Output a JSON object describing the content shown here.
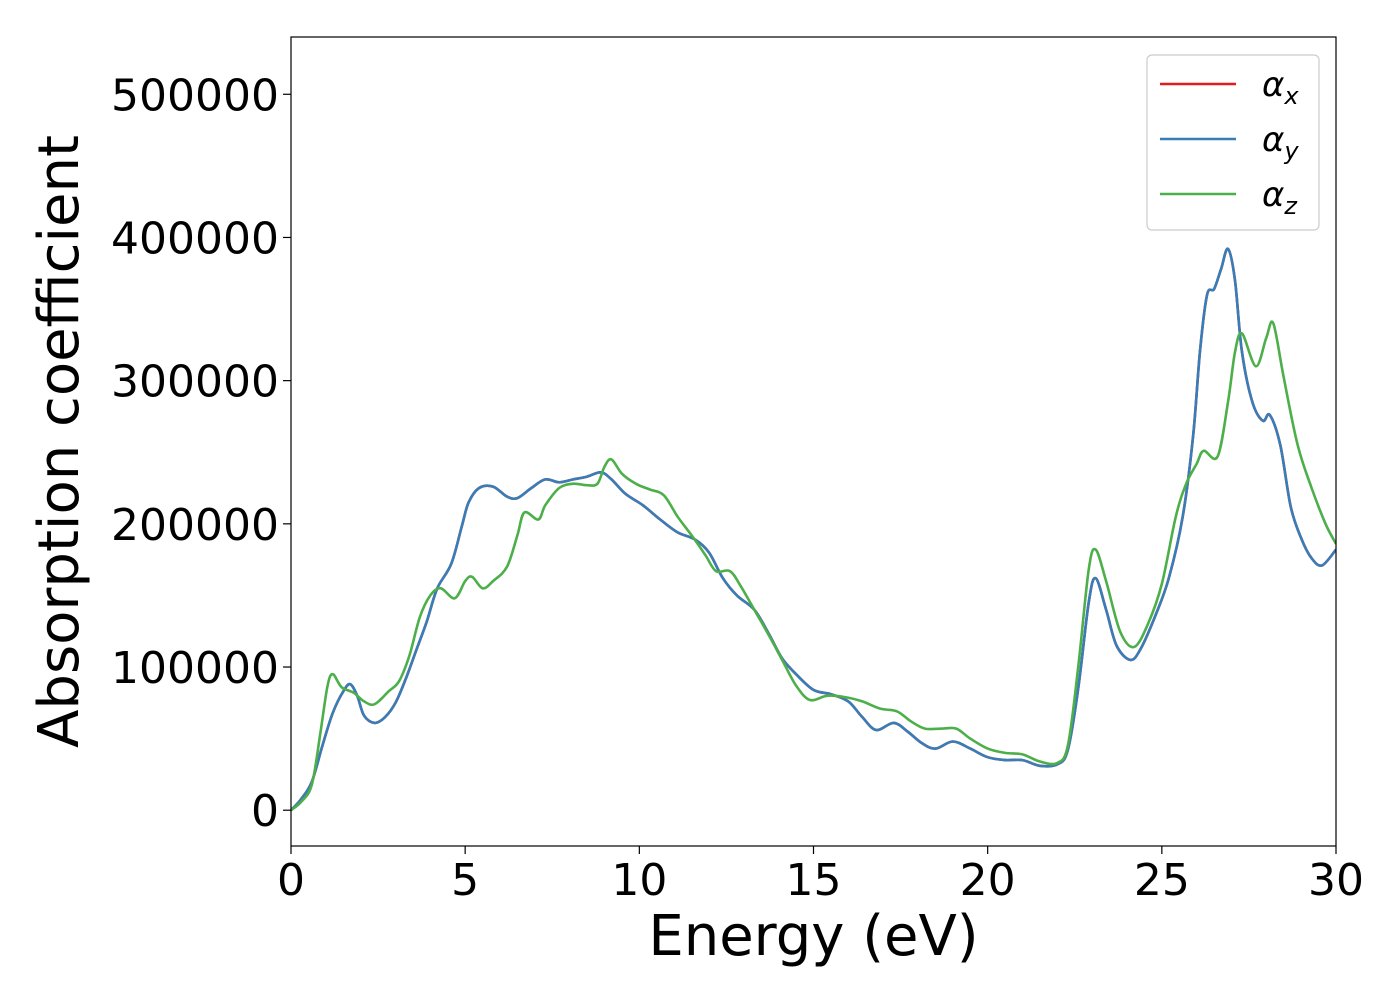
{
  "chart_data": {
    "type": "line",
    "xlabel": "Energy (eV)",
    "ylabel": "Absorption coefficient",
    "xlim": [
      0,
      30
    ],
    "ylim": [
      -25000,
      540000
    ],
    "x_ticks": [
      0,
      5,
      10,
      15,
      20,
      25,
      30
    ],
    "x_tick_labels": [
      "0",
      "5",
      "10",
      "15",
      "20",
      "25",
      "30"
    ],
    "y_ticks": [
      0,
      100000,
      200000,
      300000,
      400000,
      500000
    ],
    "y_tick_labels": [
      "0",
      "100000",
      "200000",
      "300000",
      "400000",
      "500000"
    ],
    "grid": false,
    "legend_position": "top-right",
    "series": [
      {
        "name": "αx",
        "symbol": "α",
        "subscript": "x",
        "color": "#e41a1c",
        "points": [
          [
            0,
            0
          ],
          [
            0.3,
            8000
          ],
          [
            0.6,
            20000
          ],
          [
            0.9,
            45000
          ],
          [
            1.2,
            68000
          ],
          [
            1.5,
            83000
          ],
          [
            1.7,
            88000
          ],
          [
            1.9,
            80000
          ],
          [
            2.1,
            66000
          ],
          [
            2.4,
            61000
          ],
          [
            2.7,
            65000
          ],
          [
            3.0,
            75000
          ],
          [
            3.3,
            92000
          ],
          [
            3.6,
            112000
          ],
          [
            3.9,
            132000
          ],
          [
            4.2,
            155000
          ],
          [
            4.6,
            172000
          ],
          [
            4.9,
            198000
          ],
          [
            5.1,
            215000
          ],
          [
            5.4,
            225000
          ],
          [
            5.8,
            226000
          ],
          [
            6.2,
            219000
          ],
          [
            6.5,
            218000
          ],
          [
            6.9,
            225000
          ],
          [
            7.3,
            231000
          ],
          [
            7.7,
            229000
          ],
          [
            8.1,
            231000
          ],
          [
            8.5,
            233000
          ],
          [
            8.9,
            236000
          ],
          [
            9.2,
            231000
          ],
          [
            9.6,
            221000
          ],
          [
            10.1,
            213000
          ],
          [
            10.6,
            203000
          ],
          [
            11.1,
            194000
          ],
          [
            11.6,
            189000
          ],
          [
            12.0,
            180000
          ],
          [
            12.4,
            162000
          ],
          [
            12.8,
            150000
          ],
          [
            13.3,
            140000
          ],
          [
            13.7,
            124000
          ],
          [
            14.1,
            106000
          ],
          [
            14.5,
            95000
          ],
          [
            15.0,
            84000
          ],
          [
            15.5,
            81000
          ],
          [
            16.0,
            76000
          ],
          [
            16.4,
            65000
          ],
          [
            16.8,
            56000
          ],
          [
            17.3,
            61000
          ],
          [
            17.7,
            55000
          ],
          [
            18.1,
            47000
          ],
          [
            18.5,
            43000
          ],
          [
            19.0,
            48000
          ],
          [
            19.5,
            43000
          ],
          [
            20.0,
            37000
          ],
          [
            20.5,
            35000
          ],
          [
            21.0,
            35000
          ],
          [
            21.5,
            31000
          ],
          [
            22.0,
            32000
          ],
          [
            22.3,
            42000
          ],
          [
            22.6,
            85000
          ],
          [
            22.9,
            145000
          ],
          [
            23.1,
            162000
          ],
          [
            23.4,
            140000
          ],
          [
            23.7,
            115000
          ],
          [
            24.1,
            105000
          ],
          [
            24.4,
            113000
          ],
          [
            24.8,
            135000
          ],
          [
            25.2,
            162000
          ],
          [
            25.6,
            205000
          ],
          [
            25.9,
            262000
          ],
          [
            26.1,
            322000
          ],
          [
            26.3,
            360000
          ],
          [
            26.5,
            364000
          ],
          [
            26.7,
            378000
          ],
          [
            26.9,
            392000
          ],
          [
            27.1,
            370000
          ],
          [
            27.3,
            320000
          ],
          [
            27.6,
            285000
          ],
          [
            27.9,
            272000
          ],
          [
            28.1,
            276000
          ],
          [
            28.4,
            255000
          ],
          [
            28.7,
            212000
          ],
          [
            29.0,
            190000
          ],
          [
            29.3,
            176000
          ],
          [
            29.6,
            171000
          ],
          [
            30.0,
            182000
          ]
        ]
      },
      {
        "name": "αy",
        "symbol": "α",
        "subscript": "y",
        "color": "#377eb8",
        "points": [
          [
            0,
            0
          ],
          [
            0.3,
            8000
          ],
          [
            0.6,
            20000
          ],
          [
            0.9,
            45000
          ],
          [
            1.2,
            68000
          ],
          [
            1.5,
            83000
          ],
          [
            1.7,
            88000
          ],
          [
            1.9,
            80000
          ],
          [
            2.1,
            66000
          ],
          [
            2.4,
            61000
          ],
          [
            2.7,
            65000
          ],
          [
            3.0,
            75000
          ],
          [
            3.3,
            92000
          ],
          [
            3.6,
            112000
          ],
          [
            3.9,
            132000
          ],
          [
            4.2,
            155000
          ],
          [
            4.6,
            172000
          ],
          [
            4.9,
            198000
          ],
          [
            5.1,
            215000
          ],
          [
            5.4,
            225000
          ],
          [
            5.8,
            226000
          ],
          [
            6.2,
            219000
          ],
          [
            6.5,
            218000
          ],
          [
            6.9,
            225000
          ],
          [
            7.3,
            231000
          ],
          [
            7.7,
            229000
          ],
          [
            8.1,
            231000
          ],
          [
            8.5,
            233000
          ],
          [
            8.9,
            236000
          ],
          [
            9.2,
            231000
          ],
          [
            9.6,
            221000
          ],
          [
            10.1,
            213000
          ],
          [
            10.6,
            203000
          ],
          [
            11.1,
            194000
          ],
          [
            11.6,
            189000
          ],
          [
            12.0,
            180000
          ],
          [
            12.4,
            162000
          ],
          [
            12.8,
            150000
          ],
          [
            13.3,
            140000
          ],
          [
            13.7,
            124000
          ],
          [
            14.1,
            106000
          ],
          [
            14.5,
            95000
          ],
          [
            15.0,
            84000
          ],
          [
            15.5,
            81000
          ],
          [
            16.0,
            76000
          ],
          [
            16.4,
            65000
          ],
          [
            16.8,
            56000
          ],
          [
            17.3,
            61000
          ],
          [
            17.7,
            55000
          ],
          [
            18.1,
            47000
          ],
          [
            18.5,
            43000
          ],
          [
            19.0,
            48000
          ],
          [
            19.5,
            43000
          ],
          [
            20.0,
            37000
          ],
          [
            20.5,
            35000
          ],
          [
            21.0,
            35000
          ],
          [
            21.5,
            31000
          ],
          [
            22.0,
            32000
          ],
          [
            22.3,
            42000
          ],
          [
            22.6,
            85000
          ],
          [
            22.9,
            145000
          ],
          [
            23.1,
            162000
          ],
          [
            23.4,
            140000
          ],
          [
            23.7,
            115000
          ],
          [
            24.1,
            105000
          ],
          [
            24.4,
            113000
          ],
          [
            24.8,
            135000
          ],
          [
            25.2,
            162000
          ],
          [
            25.6,
            205000
          ],
          [
            25.9,
            262000
          ],
          [
            26.1,
            322000
          ],
          [
            26.3,
            360000
          ],
          [
            26.5,
            364000
          ],
          [
            26.7,
            378000
          ],
          [
            26.9,
            392000
          ],
          [
            27.1,
            370000
          ],
          [
            27.3,
            320000
          ],
          [
            27.6,
            285000
          ],
          [
            27.9,
            272000
          ],
          [
            28.1,
            276000
          ],
          [
            28.4,
            255000
          ],
          [
            28.7,
            212000
          ],
          [
            29.0,
            190000
          ],
          [
            29.3,
            176000
          ],
          [
            29.6,
            171000
          ],
          [
            30.0,
            182000
          ]
        ]
      },
      {
        "name": "αz",
        "symbol": "α",
        "subscript": "z",
        "color": "#4daf4a",
        "points": [
          [
            0,
            0
          ],
          [
            0.3,
            6000
          ],
          [
            0.6,
            18000
          ],
          [
            0.85,
            55000
          ],
          [
            1.05,
            87000
          ],
          [
            1.2,
            95000
          ],
          [
            1.45,
            86000
          ],
          [
            1.8,
            82000
          ],
          [
            2.1,
            76000
          ],
          [
            2.4,
            74000
          ],
          [
            2.8,
            83000
          ],
          [
            3.1,
            90000
          ],
          [
            3.4,
            108000
          ],
          [
            3.7,
            135000
          ],
          [
            4.0,
            150000
          ],
          [
            4.3,
            155000
          ],
          [
            4.7,
            148000
          ],
          [
            5.0,
            160000
          ],
          [
            5.2,
            163000
          ],
          [
            5.5,
            155000
          ],
          [
            5.8,
            160000
          ],
          [
            6.2,
            170000
          ],
          [
            6.5,
            192000
          ],
          [
            6.7,
            208000
          ],
          [
            7.1,
            203000
          ],
          [
            7.3,
            213000
          ],
          [
            7.7,
            225000
          ],
          [
            8.1,
            228000
          ],
          [
            8.5,
            227000
          ],
          [
            8.8,
            228000
          ],
          [
            9.0,
            240000
          ],
          [
            9.2,
            245000
          ],
          [
            9.5,
            235000
          ],
          [
            9.9,
            228000
          ],
          [
            10.3,
            224000
          ],
          [
            10.7,
            220000
          ],
          [
            11.1,
            205000
          ],
          [
            11.5,
            192000
          ],
          [
            11.9,
            178000
          ],
          [
            12.2,
            167000
          ],
          [
            12.6,
            167000
          ],
          [
            12.9,
            157000
          ],
          [
            13.3,
            140000
          ],
          [
            13.7,
            123000
          ],
          [
            14.1,
            105000
          ],
          [
            14.5,
            87000
          ],
          [
            14.9,
            77000
          ],
          [
            15.4,
            80000
          ],
          [
            15.9,
            79000
          ],
          [
            16.4,
            76000
          ],
          [
            16.9,
            71000
          ],
          [
            17.4,
            69000
          ],
          [
            17.8,
            62000
          ],
          [
            18.2,
            57000
          ],
          [
            18.7,
            57000
          ],
          [
            19.1,
            57000
          ],
          [
            19.5,
            50000
          ],
          [
            20.0,
            43000
          ],
          [
            20.5,
            40000
          ],
          [
            21.0,
            39000
          ],
          [
            21.5,
            34000
          ],
          [
            22.0,
            33000
          ],
          [
            22.3,
            45000
          ],
          [
            22.6,
            100000
          ],
          [
            22.9,
            168000
          ],
          [
            23.1,
            182000
          ],
          [
            23.4,
            160000
          ],
          [
            23.8,
            125000
          ],
          [
            24.2,
            114000
          ],
          [
            24.6,
            130000
          ],
          [
            25.0,
            158000
          ],
          [
            25.4,
            205000
          ],
          [
            25.7,
            228000
          ],
          [
            26.0,
            242000
          ],
          [
            26.2,
            251000
          ],
          [
            26.6,
            247000
          ],
          [
            26.9,
            285000
          ],
          [
            27.1,
            320000
          ],
          [
            27.3,
            333000
          ],
          [
            27.7,
            310000
          ],
          [
            28.0,
            330000
          ],
          [
            28.2,
            340000
          ],
          [
            28.5,
            302000
          ],
          [
            28.9,
            255000
          ],
          [
            29.3,
            225000
          ],
          [
            29.7,
            200000
          ],
          [
            30.0,
            186000
          ]
        ]
      }
    ]
  }
}
